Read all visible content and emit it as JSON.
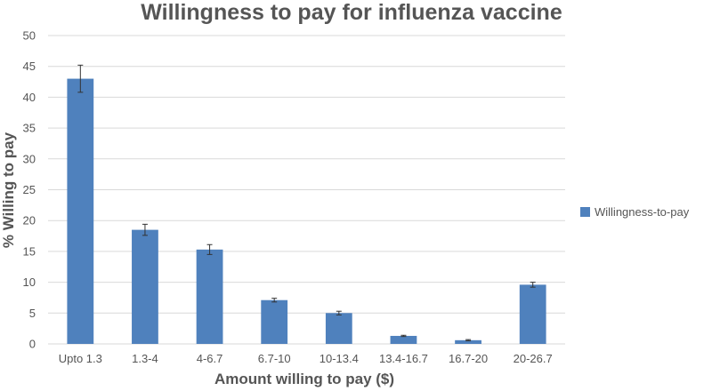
{
  "chart_data": {
    "type": "bar",
    "title": "Willingness to pay for influenza vaccine",
    "xlabel": "Amount willing to pay ($)",
    "ylabel": "% Willing to pay",
    "categories": [
      "Upto 1.3",
      "1.3-4",
      "4-6.7",
      "6.7-10",
      "10-13.4",
      "13.4-16.7",
      "16.7-20",
      "20-26.7"
    ],
    "series": [
      {
        "name": "Willingness-to-pay",
        "values": [
          43.0,
          18.5,
          15.3,
          7.1,
          5.0,
          1.3,
          0.6,
          9.6
        ],
        "error": [
          2.2,
          0.9,
          0.8,
          0.3,
          0.3,
          0.1,
          0.1,
          0.4
        ],
        "color": "#4f81bd"
      }
    ],
    "ylim": [
      0,
      50
    ],
    "yticks": [
      0,
      5,
      10,
      15,
      20,
      25,
      30,
      35,
      40,
      45,
      50
    ],
    "grid": true,
    "legend_position": "right"
  }
}
